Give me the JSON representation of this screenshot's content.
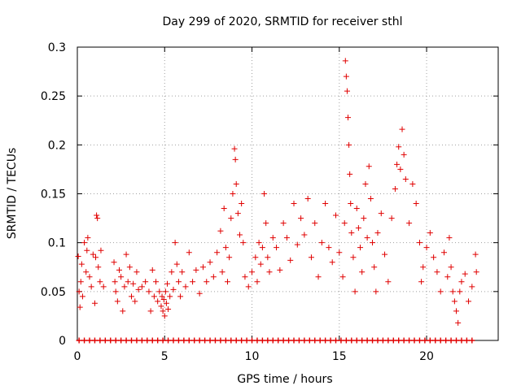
{
  "chart_data": {
    "type": "scatter",
    "title": "Day 299 of 2020, SRMTID for receiver sthl",
    "xlabel": "GPS time / hours",
    "ylabel": "SRMTID / TECUs",
    "xlim": [
      0,
      24.1
    ],
    "ylim": [
      0,
      0.3
    ],
    "x_ticks": [
      0,
      5,
      10,
      15,
      20
    ],
    "x_tick_labels": [
      "0",
      "5",
      "10",
      "15",
      "20"
    ],
    "y_ticks": [
      0,
      0.05,
      0.1,
      0.15,
      0.2,
      0.25,
      0.3
    ],
    "y_tick_labels": [
      "0",
      "0.05",
      "0.1",
      "0.15",
      "0.2",
      "0.25",
      "0.3"
    ],
    "grid": true,
    "marker": "+",
    "color": "#e00000",
    "series": [
      {
        "name": "SRMTID",
        "points": [
          [
            0.05,
            0.086
          ],
          [
            0.1,
            0.05
          ],
          [
            0.15,
            0.034
          ],
          [
            0.2,
            0.06
          ],
          [
            0.25,
            0.078
          ],
          [
            0.3,
            0.045
          ],
          [
            0.4,
            0.1
          ],
          [
            0.5,
            0.07
          ],
          [
            0.55,
            0.092
          ],
          [
            0.6,
            0.105
          ],
          [
            0.7,
            0.065
          ],
          [
            0.8,
            0.055
          ],
          [
            0.9,
            0.088
          ],
          [
            1.0,
            0.038
          ],
          [
            1.05,
            0.085
          ],
          [
            1.1,
            0.128
          ],
          [
            1.15,
            0.125
          ],
          [
            1.2,
            0.075
          ],
          [
            1.3,
            0.06
          ],
          [
            1.35,
            0.092
          ],
          [
            1.5,
            0.055
          ],
          [
            2.1,
            0.08
          ],
          [
            2.15,
            0.06
          ],
          [
            2.2,
            0.05
          ],
          [
            2.3,
            0.04
          ],
          [
            2.4,
            0.072
          ],
          [
            2.5,
            0.065
          ],
          [
            2.6,
            0.03
          ],
          [
            2.7,
            0.055
          ],
          [
            2.8,
            0.088
          ],
          [
            2.9,
            0.06
          ],
          [
            3.0,
            0.075
          ],
          [
            3.1,
            0.045
          ],
          [
            3.2,
            0.058
          ],
          [
            3.3,
            0.04
          ],
          [
            3.4,
            0.07
          ],
          [
            3.5,
            0.052
          ],
          [
            3.7,
            0.055
          ],
          [
            3.9,
            0.06
          ],
          [
            4.1,
            0.05
          ],
          [
            4.2,
            0.03
          ],
          [
            4.3,
            0.072
          ],
          [
            4.4,
            0.045
          ],
          [
            4.5,
            0.06
          ],
          [
            4.6,
            0.04
          ],
          [
            4.7,
            0.05
          ],
          [
            4.8,
            0.035
          ],
          [
            4.85,
            0.045
          ],
          [
            4.9,
            0.03
          ],
          [
            4.95,
            0.042
          ],
          [
            5.0,
            0.025
          ],
          [
            5.05,
            0.05
          ],
          [
            5.1,
            0.038
          ],
          [
            5.15,
            0.058
          ],
          [
            5.2,
            0.032
          ],
          [
            5.3,
            0.045
          ],
          [
            5.4,
            0.07
          ],
          [
            5.5,
            0.052
          ],
          [
            5.6,
            0.1
          ],
          [
            5.7,
            0.078
          ],
          [
            5.8,
            0.06
          ],
          [
            5.9,
            0.045
          ],
          [
            6.0,
            0.07
          ],
          [
            6.2,
            0.055
          ],
          [
            6.4,
            0.09
          ],
          [
            6.6,
            0.06
          ],
          [
            6.8,
            0.072
          ],
          [
            7.0,
            0.048
          ],
          [
            7.2,
            0.075
          ],
          [
            7.4,
            0.06
          ],
          [
            7.6,
            0.08
          ],
          [
            7.8,
            0.065
          ],
          [
            8.0,
            0.09
          ],
          [
            8.2,
            0.112
          ],
          [
            8.3,
            0.07
          ],
          [
            8.4,
            0.135
          ],
          [
            8.5,
            0.095
          ],
          [
            8.6,
            0.06
          ],
          [
            8.7,
            0.085
          ],
          [
            8.8,
            0.125
          ],
          [
            8.9,
            0.15
          ],
          [
            9.0,
            0.196
          ],
          [
            9.05,
            0.185
          ],
          [
            9.1,
            0.16
          ],
          [
            9.2,
            0.13
          ],
          [
            9.3,
            0.108
          ],
          [
            9.4,
            0.14
          ],
          [
            9.5,
            0.1
          ],
          [
            9.6,
            0.065
          ],
          [
            9.8,
            0.055
          ],
          [
            10.0,
            0.07
          ],
          [
            10.2,
            0.085
          ],
          [
            10.3,
            0.06
          ],
          [
            10.4,
            0.1
          ],
          [
            10.5,
            0.078
          ],
          [
            10.6,
            0.095
          ],
          [
            10.7,
            0.15
          ],
          [
            10.8,
            0.12
          ],
          [
            10.9,
            0.085
          ],
          [
            11.0,
            0.07
          ],
          [
            11.2,
            0.105
          ],
          [
            11.4,
            0.095
          ],
          [
            11.6,
            0.072
          ],
          [
            11.8,
            0.12
          ],
          [
            12.0,
            0.105
          ],
          [
            12.2,
            0.082
          ],
          [
            12.4,
            0.14
          ],
          [
            12.6,
            0.098
          ],
          [
            12.8,
            0.125
          ],
          [
            13.0,
            0.108
          ],
          [
            13.2,
            0.145
          ],
          [
            13.4,
            0.085
          ],
          [
            13.6,
            0.12
          ],
          [
            13.8,
            0.065
          ],
          [
            14.0,
            0.1
          ],
          [
            14.2,
            0.14
          ],
          [
            14.4,
            0.095
          ],
          [
            14.6,
            0.08
          ],
          [
            14.8,
            0.128
          ],
          [
            15.0,
            0.09
          ],
          [
            15.2,
            0.065
          ],
          [
            15.3,
            0.12
          ],
          [
            15.35,
            0.286
          ],
          [
            15.4,
            0.27
          ],
          [
            15.45,
            0.255
          ],
          [
            15.5,
            0.228
          ],
          [
            15.55,
            0.2
          ],
          [
            15.6,
            0.17
          ],
          [
            15.65,
            0.14
          ],
          [
            15.7,
            0.11
          ],
          [
            15.8,
            0.085
          ],
          [
            15.9,
            0.05
          ],
          [
            16.0,
            0.135
          ],
          [
            16.1,
            0.115
          ],
          [
            16.2,
            0.095
          ],
          [
            16.3,
            0.07
          ],
          [
            16.4,
            0.125
          ],
          [
            16.5,
            0.16
          ],
          [
            16.6,
            0.105
          ],
          [
            16.7,
            0.178
          ],
          [
            16.8,
            0.145
          ],
          [
            16.9,
            0.1
          ],
          [
            17.0,
            0.075
          ],
          [
            17.1,
            0.05
          ],
          [
            17.2,
            0.11
          ],
          [
            17.4,
            0.13
          ],
          [
            17.6,
            0.088
          ],
          [
            17.8,
            0.06
          ],
          [
            18.0,
            0.125
          ],
          [
            18.2,
            0.155
          ],
          [
            18.3,
            0.18
          ],
          [
            18.4,
            0.198
          ],
          [
            18.5,
            0.175
          ],
          [
            18.6,
            0.216
          ],
          [
            18.7,
            0.19
          ],
          [
            18.8,
            0.165
          ],
          [
            19.0,
            0.12
          ],
          [
            19.2,
            0.16
          ],
          [
            19.4,
            0.14
          ],
          [
            19.6,
            0.1
          ],
          [
            19.7,
            0.06
          ],
          [
            19.8,
            0.075
          ],
          [
            20.0,
            0.095
          ],
          [
            20.2,
            0.11
          ],
          [
            20.4,
            0.085
          ],
          [
            20.6,
            0.07
          ],
          [
            20.8,
            0.05
          ],
          [
            21.0,
            0.09
          ],
          [
            21.2,
            0.065
          ],
          [
            21.3,
            0.105
          ],
          [
            21.4,
            0.075
          ],
          [
            21.5,
            0.05
          ],
          [
            21.6,
            0.04
          ],
          [
            21.7,
            0.03
          ],
          [
            21.8,
            0.018
          ],
          [
            21.9,
            0.05
          ],
          [
            22.0,
            0.06
          ],
          [
            22.2,
            0.068
          ],
          [
            22.4,
            0.04
          ],
          [
            22.6,
            0.055
          ],
          [
            22.8,
            0.088
          ],
          [
            22.85,
            0.07
          ]
        ]
      }
    ],
    "zero_markers": [
      0.1,
      0.4,
      0.7,
      1.0,
      1.3,
      1.6,
      1.9,
      2.2,
      2.5,
      2.8,
      3.1,
      3.4,
      3.7,
      4.0,
      4.3,
      4.6,
      4.9,
      5.2,
      5.5,
      5.8,
      6.1,
      6.4,
      6.7,
      7.0,
      7.3,
      7.6,
      7.9,
      8.2,
      8.5,
      8.8,
      9.1,
      9.4,
      9.7,
      10.0,
      10.3,
      10.6,
      10.9,
      11.2,
      11.5,
      11.8,
      12.1,
      12.4,
      12.7,
      13.0,
      13.3,
      13.6,
      13.9,
      14.2,
      14.5,
      14.8,
      15.1,
      15.4,
      15.7,
      16.0,
      16.3,
      16.6,
      16.9,
      17.2,
      17.5,
      17.8,
      18.1,
      18.4,
      18.7,
      19.0,
      19.3,
      19.6,
      19.9,
      20.2,
      20.5,
      20.8,
      21.1,
      21.4,
      21.7,
      22.0,
      22.3,
      22.6
    ]
  }
}
